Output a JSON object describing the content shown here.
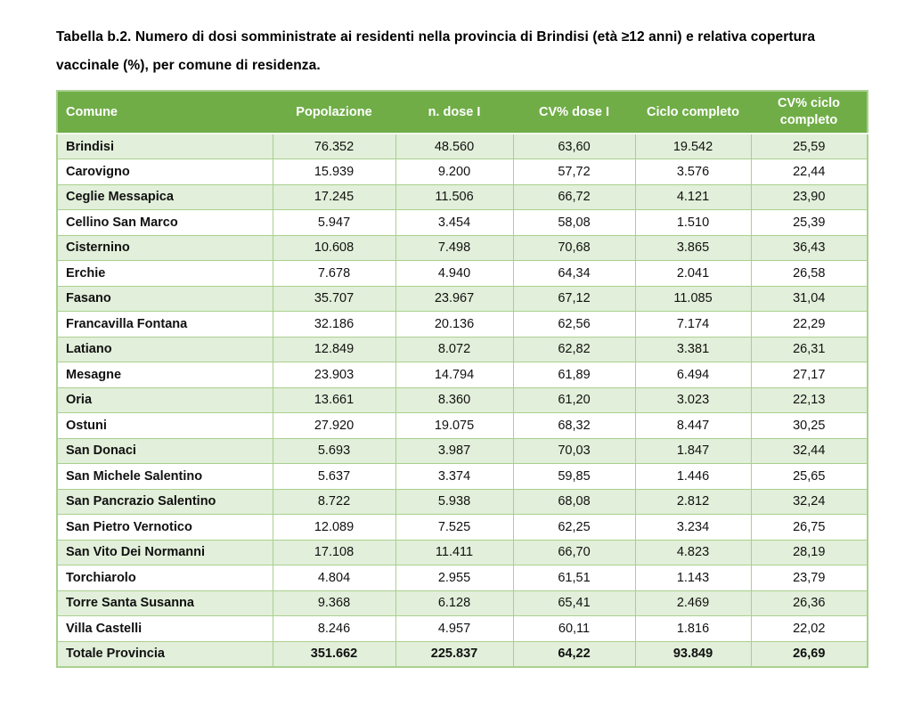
{
  "caption": "Tabella b.2. Numero di dosi somministrate ai residenti nella provincia di Brindisi (età ≥12 anni) e relativa copertura vaccinale (%), per comune di residenza.",
  "table": {
    "columns": [
      "Comune",
      "Popolazione",
      "n. dose I",
      "CV% dose I",
      "Ciclo completo",
      "CV% ciclo completo"
    ],
    "rows": [
      [
        "Brindisi",
        "76.352",
        "48.560",
        "63,60",
        "19.542",
        "25,59"
      ],
      [
        "Carovigno",
        "15.939",
        "9.200",
        "57,72",
        "3.576",
        "22,44"
      ],
      [
        "Ceglie Messapica",
        "17.245",
        "11.506",
        "66,72",
        "4.121",
        "23,90"
      ],
      [
        "Cellino San Marco",
        "5.947",
        "3.454",
        "58,08",
        "1.510",
        "25,39"
      ],
      [
        "Cisternino",
        "10.608",
        "7.498",
        "70,68",
        "3.865",
        "36,43"
      ],
      [
        "Erchie",
        "7.678",
        "4.940",
        "64,34",
        "2.041",
        "26,58"
      ],
      [
        "Fasano",
        "35.707",
        "23.967",
        "67,12",
        "11.085",
        "31,04"
      ],
      [
        "Francavilla Fontana",
        "32.186",
        "20.136",
        "62,56",
        "7.174",
        "22,29"
      ],
      [
        "Latiano",
        "12.849",
        "8.072",
        "62,82",
        "3.381",
        "26,31"
      ],
      [
        "Mesagne",
        "23.903",
        "14.794",
        "61,89",
        "6.494",
        "27,17"
      ],
      [
        "Oria",
        "13.661",
        "8.360",
        "61,20",
        "3.023",
        "22,13"
      ],
      [
        "Ostuni",
        "27.920",
        "19.075",
        "68,32",
        "8.447",
        "30,25"
      ],
      [
        "San Donaci",
        "5.693",
        "3.987",
        "70,03",
        "1.847",
        "32,44"
      ],
      [
        "San Michele Salentino",
        "5.637",
        "3.374",
        "59,85",
        "1.446",
        "25,65"
      ],
      [
        "San Pancrazio Salentino",
        "8.722",
        "5.938",
        "68,08",
        "2.812",
        "32,24"
      ],
      [
        "San Pietro Vernotico",
        "12.089",
        "7.525",
        "62,25",
        "3.234",
        "26,75"
      ],
      [
        "San Vito Dei Normanni",
        "17.108",
        "11.411",
        "66,70",
        "4.823",
        "28,19"
      ],
      [
        "Torchiarolo",
        "4.804",
        "2.955",
        "61,51",
        "1.143",
        "23,79"
      ],
      [
        "Torre Santa Susanna",
        "9.368",
        "6.128",
        "65,41",
        "2.469",
        "26,36"
      ],
      [
        "Villa Castelli",
        "8.246",
        "4.957",
        "60,11",
        "1.816",
        "22,02"
      ]
    ],
    "total_row": [
      "Totale Provincia",
      "351.662",
      "225.837",
      "64,22",
      "93.849",
      "26,69"
    ]
  },
  "colors": {
    "header_bg": "#70AD47",
    "header_text": "#FFFFFF",
    "row_alt_bg": "#E2EFDA",
    "row_bg": "#FFFFFF",
    "border": "#A9D08E",
    "text": "#111111"
  }
}
